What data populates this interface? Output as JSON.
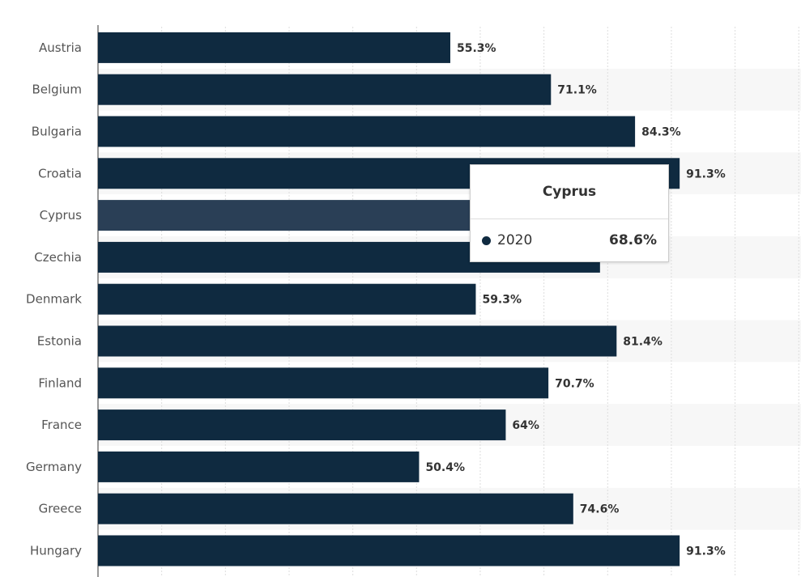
{
  "chart_data": {
    "type": "bar",
    "orientation": "horizontal",
    "categories": [
      "Austria",
      "Belgium",
      "Bulgaria",
      "Croatia",
      "Cyprus",
      "Czechia",
      "Denmark",
      "Estonia",
      "Finland",
      "France",
      "Germany",
      "Greece",
      "Hungary"
    ],
    "series": [
      {
        "name": "2020",
        "values": [
          55.3,
          71.1,
          84.3,
          91.3,
          68.6,
          78.8,
          59.3,
          81.4,
          70.7,
          64,
          50.4,
          74.6,
          91.3
        ]
      }
    ],
    "labels": [
      "55.3%",
      "71.1%",
      "84.3%",
      "91.3%",
      "",
      "",
      "59.3%",
      "81.4%",
      "70.7%",
      "64%",
      "50.4%",
      "74.6%",
      "91.3%"
    ],
    "xlim": [
      0,
      110
    ],
    "grid": true,
    "highlighted_category": "Cyprus",
    "colors": {
      "bar": "#0f2a40",
      "highlight": "#2a3f56",
      "band": "#f7f7f7"
    }
  },
  "tooltip": {
    "title": "Cyprus",
    "series": "2020",
    "value": "68.6%"
  }
}
